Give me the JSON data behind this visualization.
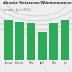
{
  "title": "Absatz Heizungs-Wärmepumpen",
  "subtitle": "Januar - Juni 2024",
  "categories": [
    "Januar",
    "Februar",
    "März",
    "April",
    "Mai",
    "Juni"
  ],
  "values": [
    88,
    85,
    82,
    60,
    82,
    88
  ],
  "bar_color": "#2eab5a",
  "background_color": "#eeeeee",
  "arc_color": "#cccccc",
  "title_fontsize": 3.2,
  "subtitle_fontsize": 2.6,
  "tick_fontsize": 1.9,
  "ylim": [
    0,
    100
  ]
}
